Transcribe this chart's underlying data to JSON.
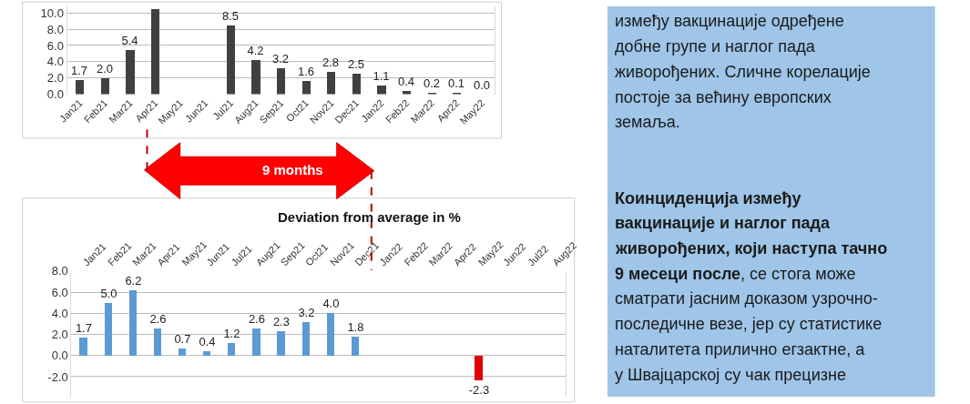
{
  "chart_data": [
    {
      "type": "bar",
      "categories": [
        "Jan21",
        "Feb21",
        "Mar21",
        "Apr21",
        "May21",
        "Jun21",
        "Jul21",
        "Aug21",
        "Sep21",
        "Oct21",
        "Nov21",
        "Dec21",
        "Jan22",
        "Feb22",
        "Mar22",
        "Apr22",
        "May22"
      ],
      "values": [
        1.7,
        2.0,
        5.4,
        10.5,
        null,
        null,
        8.5,
        4.2,
        3.2,
        1.6,
        2.8,
        2.5,
        1.1,
        0.4,
        0.2,
        0.1,
        0.0
      ],
      "value_labels": [
        "1.7",
        "2.0",
        "5.4",
        null,
        null,
        null,
        "8.5",
        "4.2",
        "3.2",
        "1.6",
        "2.8",
        "2.5",
        "1.1",
        "0.4",
        "0.2",
        "0.1",
        "0.0"
      ],
      "color": "#404040",
      "ylim": [
        0,
        10.8
      ],
      "yticks": [
        {
          "value": 0,
          "label": "0.0"
        },
        {
          "value": 2,
          "label": "2.0"
        },
        {
          "value": 4,
          "label": "4.0"
        },
        {
          "value": 6,
          "label": "6.0"
        },
        {
          "value": 8,
          "label": "8.0"
        },
        {
          "value": 10,
          "label": "10.0"
        }
      ],
      "grid": "y",
      "annotations": [
        "9 months"
      ]
    },
    {
      "type": "bar",
      "title": "Deviation from average in %",
      "categories": [
        "Jan21",
        "Feb21",
        "Mar21",
        "Apr21",
        "May21",
        "Jun21",
        "Jul21",
        "Aug21",
        "Sep21",
        "Oct21",
        "Nov21",
        "Dec21",
        "Jan22",
        "Feb22",
        "Mar22",
        "Apr22",
        "May22",
        "Jun22",
        "Jul22",
        "Aug22"
      ],
      "values": [
        1.7,
        5.0,
        6.2,
        2.6,
        0.7,
        0.4,
        1.2,
        2.6,
        2.3,
        3.2,
        4.0,
        1.8,
        null,
        null,
        null,
        null,
        -2.3,
        null,
        null,
        null
      ],
      "value_labels": [
        "1.7",
        "5.0",
        "6.2",
        "2.6",
        "0.7",
        "0.4",
        "1.2",
        "2.6",
        "2.3",
        "3.2",
        "4.0",
        "1.8",
        null,
        null,
        null,
        null,
        "-2.3",
        null,
        null,
        null
      ],
      "colors": [
        "#5b9bd5",
        "#5b9bd5",
        "#5b9bd5",
        "#5b9bd5",
        "#5b9bd5",
        "#5b9bd5",
        "#5b9bd5",
        "#5b9bd5",
        "#5b9bd5",
        "#5b9bd5",
        "#5b9bd5",
        "#5b9bd5",
        "#e00000",
        "#e00000",
        "#e00000",
        "#e00000",
        "#e00000",
        "#e00000",
        "#e00000",
        "#e00000"
      ],
      "ylim": [
        -3.9,
        8.0
      ],
      "yticks": [
        {
          "value": -2,
          "label": "-2.0"
        },
        {
          "value": 0,
          "label": "0.0"
        },
        {
          "value": 2,
          "label": "2.0"
        },
        {
          "value": 4,
          "label": "4.0"
        },
        {
          "value": 6,
          "label": "6.0"
        },
        {
          "value": 8,
          "label": "8.0"
        }
      ],
      "grid": "y"
    },
    {
      "type": "other",
      "annotations": [
        "између вакцинације одређене\nдобне групе и наглог пада\nживорођених. Сличне корелације\nпостоје за већину европских\nземаља.",
        "Коинциденција између\nвакцинације и наглог пада\nживорођених, који наступа тачно\n9 месеци после",
        ", се стога може\nсматрати јасним доказом узрочно-\nпоследичне везе, јер су статистике\nнаталитета прилично егзактне, а\nу Швајцарској су чак прецизне"
      ]
    }
  ]
}
